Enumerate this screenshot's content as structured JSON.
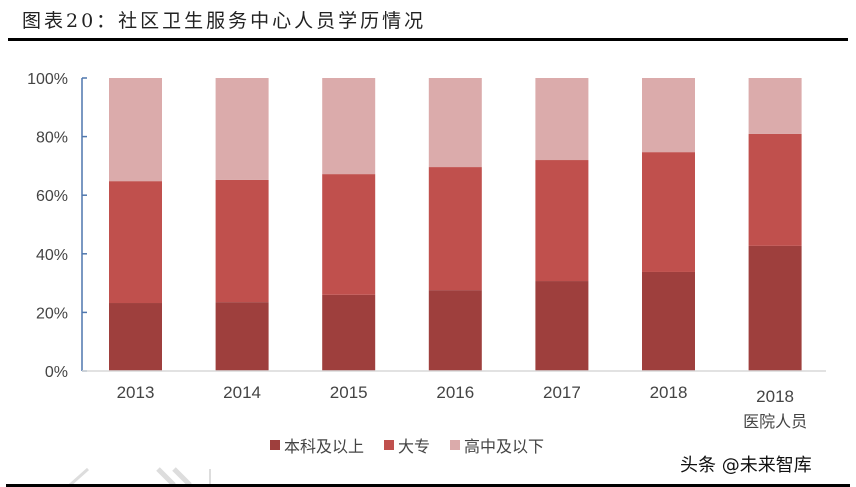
{
  "header": {
    "title": "图表20：社区卫生服务中心人员学历情况"
  },
  "legend": [
    {
      "label": "本科及以上",
      "color": "#9E3F3D"
    },
    {
      "label": "大专",
      "color": "#C0504D"
    },
    {
      "label": "高中及以下",
      "color": "#DBABAB"
    }
  ],
  "watermark": "头条 @未来智库",
  "yaxis": {
    "ticks": [
      "0%",
      "20%",
      "40%",
      "60%",
      "80%",
      "100%"
    ]
  },
  "xaxis": {
    "labels": [
      "2013",
      "2014",
      "2015",
      "2016",
      "2017",
      "2018",
      "2018"
    ],
    "sublabels": [
      "",
      "",
      "",
      "",
      "",
      "",
      "医院人员"
    ]
  },
  "chart_data": {
    "type": "bar",
    "stacked": true,
    "title": "图表20：社区卫生服务中心人员学历情况",
    "categories": [
      "2013",
      "2014",
      "2015",
      "2016",
      "2017",
      "2018",
      "2018 医院人员"
    ],
    "series": [
      {
        "name": "本科及以上",
        "color": "#9E3F3D",
        "values": [
          23.2,
          23.5,
          26.0,
          27.6,
          30.7,
          33.8,
          42.7
        ]
      },
      {
        "name": "大专",
        "color": "#C0504D",
        "values": [
          41.6,
          41.7,
          41.2,
          42.0,
          41.3,
          40.9,
          38.2
        ]
      },
      {
        "name": "高中及以下",
        "color": "#DBABAB",
        "values": [
          35.2,
          34.8,
          32.8,
          30.4,
          28.0,
          25.3,
          19.1
        ]
      }
    ],
    "xlabel": "",
    "ylabel": "",
    "ylim": [
      0,
      100
    ],
    "ytick_labels": [
      "0%",
      "20%",
      "40%",
      "60%",
      "80%",
      "100%"
    ],
    "grid": false,
    "legend_position": "bottom"
  }
}
